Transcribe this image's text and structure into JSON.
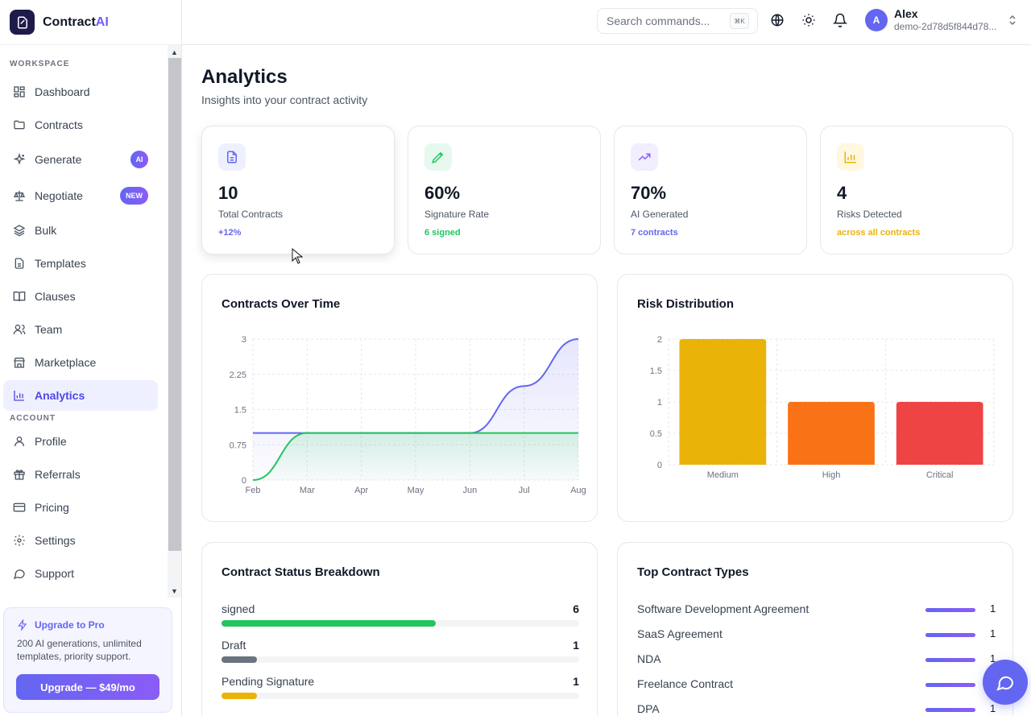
{
  "brand": {
    "name": "Contract",
    "name_accent": "AI"
  },
  "sidebar": {
    "workspace_label": "WORKSPACE",
    "account_label": "ACCOUNT",
    "items": [
      {
        "label": "Dashboard",
        "icon": "dashboard-icon"
      },
      {
        "label": "Contracts",
        "icon": "folder-icon"
      },
      {
        "label": "Generate",
        "icon": "sparkles-icon",
        "badge": "AI"
      },
      {
        "label": "Negotiate",
        "icon": "scale-icon",
        "badge": "NEW"
      },
      {
        "label": "Bulk",
        "icon": "layers-icon"
      },
      {
        "label": "Templates",
        "icon": "file-icon"
      },
      {
        "label": "Clauses",
        "icon": "book-icon"
      },
      {
        "label": "Team",
        "icon": "users-icon"
      },
      {
        "label": "Marketplace",
        "icon": "store-icon"
      },
      {
        "label": "Analytics",
        "icon": "bar-chart-icon",
        "active": true
      }
    ],
    "account_items": [
      {
        "label": "Profile",
        "icon": "user-icon"
      },
      {
        "label": "Referrals",
        "icon": "gift-icon"
      },
      {
        "label": "Pricing",
        "icon": "credit-card-icon"
      },
      {
        "label": "Settings",
        "icon": "gear-icon"
      },
      {
        "label": "Support",
        "icon": "message-icon"
      }
    ],
    "upgrade": {
      "title": "Upgrade to Pro",
      "description": "200 AI generations, unlimited templates, priority support.",
      "button": "Upgrade — $49/mo"
    }
  },
  "topbar": {
    "search_placeholder": "Search commands...",
    "shortcut": "⌘K",
    "user": {
      "initial": "A",
      "name": "Alex",
      "id": "demo-2d78d5f844d78..."
    }
  },
  "page": {
    "title": "Analytics",
    "subtitle": "Insights into your contract activity"
  },
  "stats": [
    {
      "value": "10",
      "label": "Total Contracts",
      "foot": "+12%",
      "foot_color": "#6366f1",
      "icon": "document-icon"
    },
    {
      "value": "60%",
      "label": "Signature Rate",
      "foot": "6 signed",
      "foot_color": "#22c55e",
      "icon": "pen-icon"
    },
    {
      "value": "70%",
      "label": "AI Generated",
      "foot": "7 contracts",
      "foot_color": "#6366f1",
      "icon": "trending-up-icon"
    },
    {
      "value": "4",
      "label": "Risks Detected",
      "foot": "across all contracts",
      "foot_color": "#eab308",
      "icon": "bar-chart-icon"
    }
  ],
  "status_breakdown": {
    "title": "Contract Status Breakdown",
    "rows": [
      {
        "name": "signed",
        "count": "6",
        "fraction": 0.6,
        "color": "#22c55e"
      },
      {
        "name": "Draft",
        "count": "1",
        "fraction": 0.1,
        "color": "#6b7280"
      },
      {
        "name": "Pending Signature",
        "count": "1",
        "fraction": 0.1,
        "color": "#eab308"
      }
    ]
  },
  "top_types": {
    "title": "Top Contract Types",
    "rows": [
      {
        "name": "Software Development Agreement",
        "count": "1"
      },
      {
        "name": "SaaS Agreement",
        "count": "1"
      },
      {
        "name": "NDA",
        "count": "1"
      },
      {
        "name": "Freelance Contract",
        "count": "1"
      },
      {
        "name": "DPA",
        "count": "1"
      }
    ]
  },
  "chart_data": [
    {
      "type": "area",
      "title": "Contracts Over Time",
      "x": [
        "Feb",
        "Mar",
        "Apr",
        "May",
        "Jun",
        "Jul",
        "Aug"
      ],
      "yticks": [
        "0",
        "0.75",
        "1.5",
        "2.25",
        "3"
      ],
      "ylim": [
        0,
        3
      ],
      "grid": true,
      "series": [
        {
          "values": [
            1,
            1,
            1,
            1,
            1,
            2,
            3
          ],
          "color": "#6366f1"
        },
        {
          "values": [
            0,
            1,
            1,
            1,
            1,
            1,
            1
          ],
          "color": "#22c55e"
        }
      ]
    },
    {
      "type": "bar",
      "title": "Risk Distribution",
      "categories": [
        "Medium",
        "High",
        "Critical"
      ],
      "values": [
        2,
        1,
        1
      ],
      "colors": [
        "#eab308",
        "#f97316",
        "#ef4444"
      ],
      "yticks": [
        "0",
        "0.5",
        "1",
        "1.5",
        "2"
      ],
      "ylim": [
        0,
        2
      ],
      "grid": true
    }
  ]
}
